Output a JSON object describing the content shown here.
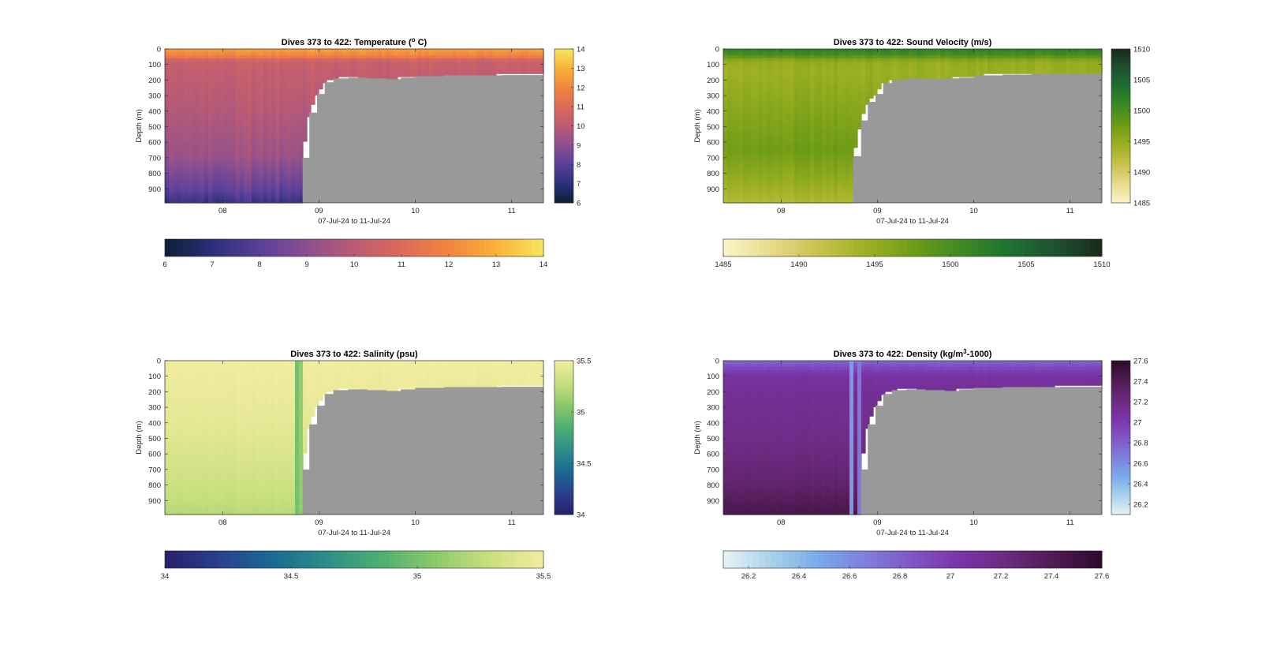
{
  "figure": {
    "window": "MATLAB figure",
    "background": "#ffffff",
    "nodata_color": "#999999"
  },
  "chart_data": [
    {
      "type": "heatmap",
      "title": "Dives 373 to 422: Temperature (",
      "title_unit": "o",
      "title_end": " C)",
      "xlabel": "07-Jul-24 to 11-Jul-24",
      "ylabel": "Depth (m)",
      "x_ticks": [
        "08",
        "09",
        "10",
        "11"
      ],
      "x_tick_positions": [
        8,
        9,
        10,
        11
      ],
      "xlim": [
        7.4,
        11.33
      ],
      "y_ticks": [
        "0",
        "100",
        "200",
        "300",
        "400",
        "500",
        "600",
        "700",
        "800",
        "900"
      ],
      "y_tick_values": [
        0,
        100,
        200,
        300,
        400,
        500,
        600,
        700,
        800,
        900
      ],
      "ylim": [
        0,
        990
      ],
      "y_reversed": true,
      "colormap": [
        "#0b1f33",
        "#2a2f7a",
        "#5a3f9a",
        "#8c4f8f",
        "#bb5b74",
        "#dc6a5a",
        "#f2853f",
        "#f9b13a",
        "#f7e65c"
      ],
      "clim": [
        6,
        14
      ],
      "colorbar_ticks": [
        "6",
        "7",
        "8",
        "9",
        "10",
        "11",
        "12",
        "13",
        "14"
      ],
      "horizontal_colorbar_ticks": [
        "6",
        "7",
        "8",
        "9",
        "10",
        "11",
        "12",
        "13",
        "14"
      ],
      "profile": {
        "depths": [
          0,
          40,
          80,
          150,
          400,
          700,
          900,
          990
        ],
        "values": [
          12.6,
          12.0,
          10.4,
          10.2,
          9.9,
          9.4,
          8.4,
          7.6
        ]
      },
      "variability": 0.25,
      "deep_shift": -0.5,
      "seafloor": {
        "times": [
          7.4,
          8.82,
          8.83,
          8.9,
          8.98,
          9.06,
          9.15,
          9.3,
          9.5,
          9.7,
          9.85,
          10.0,
          10.3,
          10.6,
          10.9,
          11.33
        ],
        "depths": [
          990,
          990,
          700,
          410,
          290,
          215,
          190,
          185,
          190,
          195,
          185,
          175,
          170,
          170,
          168,
          165
        ]
      },
      "anomaly_columns": []
    },
    {
      "type": "heatmap",
      "title": "Dives 373 to 422: Sound Velocity (m/s)",
      "title_unit": "",
      "title_end": "",
      "xlabel": "07-Jul-24 to 11-Jul-24",
      "ylabel": "Depth (m)",
      "x_ticks": [
        "08",
        "09",
        "10",
        "11"
      ],
      "x_tick_positions": [
        8,
        9,
        10,
        11
      ],
      "xlim": [
        7.4,
        11.33
      ],
      "y_ticks": [
        "0",
        "100",
        "200",
        "300",
        "400",
        "500",
        "600",
        "700",
        "800",
        "900"
      ],
      "y_tick_values": [
        0,
        100,
        200,
        300,
        400,
        500,
        600,
        700,
        800,
        900
      ],
      "ylim": [
        0,
        990
      ],
      "y_reversed": true,
      "colormap": [
        "#fbf5c8",
        "#e6dc8c",
        "#c8c24e",
        "#9fb024",
        "#6f9d16",
        "#3f8a22",
        "#1f7231",
        "#1e5230",
        "#182a1c"
      ],
      "clim": [
        1485,
        1510
      ],
      "colorbar_ticks": [
        "1485",
        "1490",
        "1495",
        "1500",
        "1505",
        "1510"
      ],
      "horizontal_colorbar_ticks": [
        "1485",
        "1490",
        "1495",
        "1500",
        "1505",
        "1510"
      ],
      "profile": {
        "depths": [
          0,
          40,
          80,
          150,
          400,
          650,
          850,
          990
        ],
        "values": [
          1502,
          1500,
          1495,
          1494.5,
          1496,
          1497.5,
          1495,
          1493
        ]
      },
      "variability": 0.8,
      "deep_shift": 0,
      "seafloor": {
        "times": [
          7.4,
          8.74,
          8.75,
          8.83,
          8.9,
          8.98,
          9.06,
          9.15,
          9.3,
          9.5,
          9.7,
          9.85,
          10.0,
          10.3,
          10.6,
          10.9,
          11.33
        ],
        "depths": [
          990,
          990,
          690,
          460,
          340,
          290,
          220,
          200,
          190,
          195,
          190,
          185,
          170,
          165,
          160,
          158,
          155
        ]
      },
      "anomaly_columns": []
    },
    {
      "type": "heatmap",
      "title": "Dives 373 to 422: Salinity (psu)",
      "title_unit": "",
      "title_end": "",
      "xlabel": "07-Jul-24 to 11-Jul-24",
      "ylabel": "Depth (m)",
      "x_ticks": [
        "08",
        "09",
        "10",
        "11"
      ],
      "x_tick_positions": [
        8,
        9,
        10,
        11
      ],
      "xlim": [
        7.4,
        11.33
      ],
      "y_ticks": [
        "0",
        "100",
        "200",
        "300",
        "400",
        "500",
        "600",
        "700",
        "800",
        "900"
      ],
      "y_tick_values": [
        0,
        100,
        200,
        300,
        400,
        500,
        600,
        700,
        800,
        900
      ],
      "ylim": [
        0,
        990
      ],
      "y_reversed": true,
      "colormap": [
        "#2a1f6b",
        "#28408f",
        "#1c6a92",
        "#2c8f87",
        "#4fae72",
        "#8cc96b",
        "#c9df7f",
        "#f2eca0"
      ],
      "clim": [
        34,
        35.5
      ],
      "colorbar_ticks": [
        "34",
        "34.5",
        "35",
        "35.5"
      ],
      "horizontal_colorbar_ticks": [
        "34",
        "34.5",
        "35",
        "35.5"
      ],
      "profile": {
        "depths": [
          0,
          100,
          400,
          700,
          900,
          990
        ],
        "values": [
          35.5,
          35.48,
          35.43,
          35.34,
          35.27,
          35.22
        ]
      },
      "variability": 0.02,
      "deep_shift": 0,
      "seafloor": {
        "times": [
          7.4,
          8.82,
          8.83,
          8.9,
          8.98,
          9.06,
          9.15,
          9.3,
          9.5,
          9.7,
          9.85,
          10.0,
          10.3,
          10.6,
          10.9,
          11.33
        ],
        "depths": [
          990,
          990,
          700,
          410,
          290,
          215,
          190,
          185,
          190,
          195,
          185,
          175,
          170,
          170,
          168,
          165
        ]
      },
      "anomaly_columns": [
        {
          "t0": 8.74,
          "t1": 8.79,
          "value": 35.0
        },
        {
          "t0": 8.81,
          "t1": 8.85,
          "value": 35.1
        }
      ]
    },
    {
      "type": "heatmap",
      "title": "Dives 373 to 422: Density (kg/m",
      "title_unit": "3",
      "title_end": "-1000)",
      "xlabel": "07-Jul-24 to 11-Jul-24",
      "ylabel": "Depth (m)",
      "x_ticks": [
        "08",
        "09",
        "10",
        "11"
      ],
      "x_tick_positions": [
        8,
        9,
        10,
        11
      ],
      "xlim": [
        7.4,
        11.33
      ],
      "y_ticks": [
        "0",
        "100",
        "200",
        "300",
        "400",
        "500",
        "600",
        "700",
        "800",
        "900"
      ],
      "y_tick_values": [
        0,
        100,
        200,
        300,
        400,
        500,
        600,
        700,
        800,
        900
      ],
      "ylim": [
        0,
        990
      ],
      "y_reversed": true,
      "colormap": [
        "#e8f3f4",
        "#a9d2ea",
        "#7aaaea",
        "#7f7fdd",
        "#8055c6",
        "#7a34a8",
        "#6b2a7e",
        "#4f1a52",
        "#2b0b2b"
      ],
      "clim": [
        26.1,
        27.6
      ],
      "colorbar_ticks": [
        "26.2",
        "26.4",
        "26.6",
        "26.8",
        "27",
        "27.2",
        "27.4",
        "27.6"
      ],
      "colorbar_tick_values": [
        26.2,
        26.4,
        26.6,
        26.8,
        27,
        27.2,
        27.4,
        27.6
      ],
      "horizontal_colorbar_ticks": [
        "26.2",
        "26.4",
        "26.6",
        "26.8",
        "27",
        "27.2",
        "27.4",
        "27.6"
      ],
      "profile": {
        "depths": [
          0,
          40,
          90,
          200,
          500,
          800,
          990
        ],
        "values": [
          26.75,
          26.9,
          27.05,
          27.12,
          27.18,
          27.3,
          27.45
        ]
      },
      "variability": 0.02,
      "deep_shift": 0,
      "seafloor": {
        "times": [
          7.4,
          8.82,
          8.83,
          8.9,
          8.98,
          9.06,
          9.15,
          9.3,
          9.5,
          9.7,
          9.85,
          10.0,
          10.3,
          10.6,
          10.9,
          11.33
        ],
        "depths": [
          990,
          990,
          700,
          410,
          290,
          215,
          190,
          185,
          190,
          195,
          185,
          175,
          170,
          170,
          168,
          165
        ]
      },
      "anomaly_columns": [
        {
          "t0": 8.72,
          "t1": 8.76,
          "value": 26.55
        },
        {
          "t0": 8.79,
          "t1": 8.83,
          "value": 26.7
        }
      ]
    }
  ]
}
